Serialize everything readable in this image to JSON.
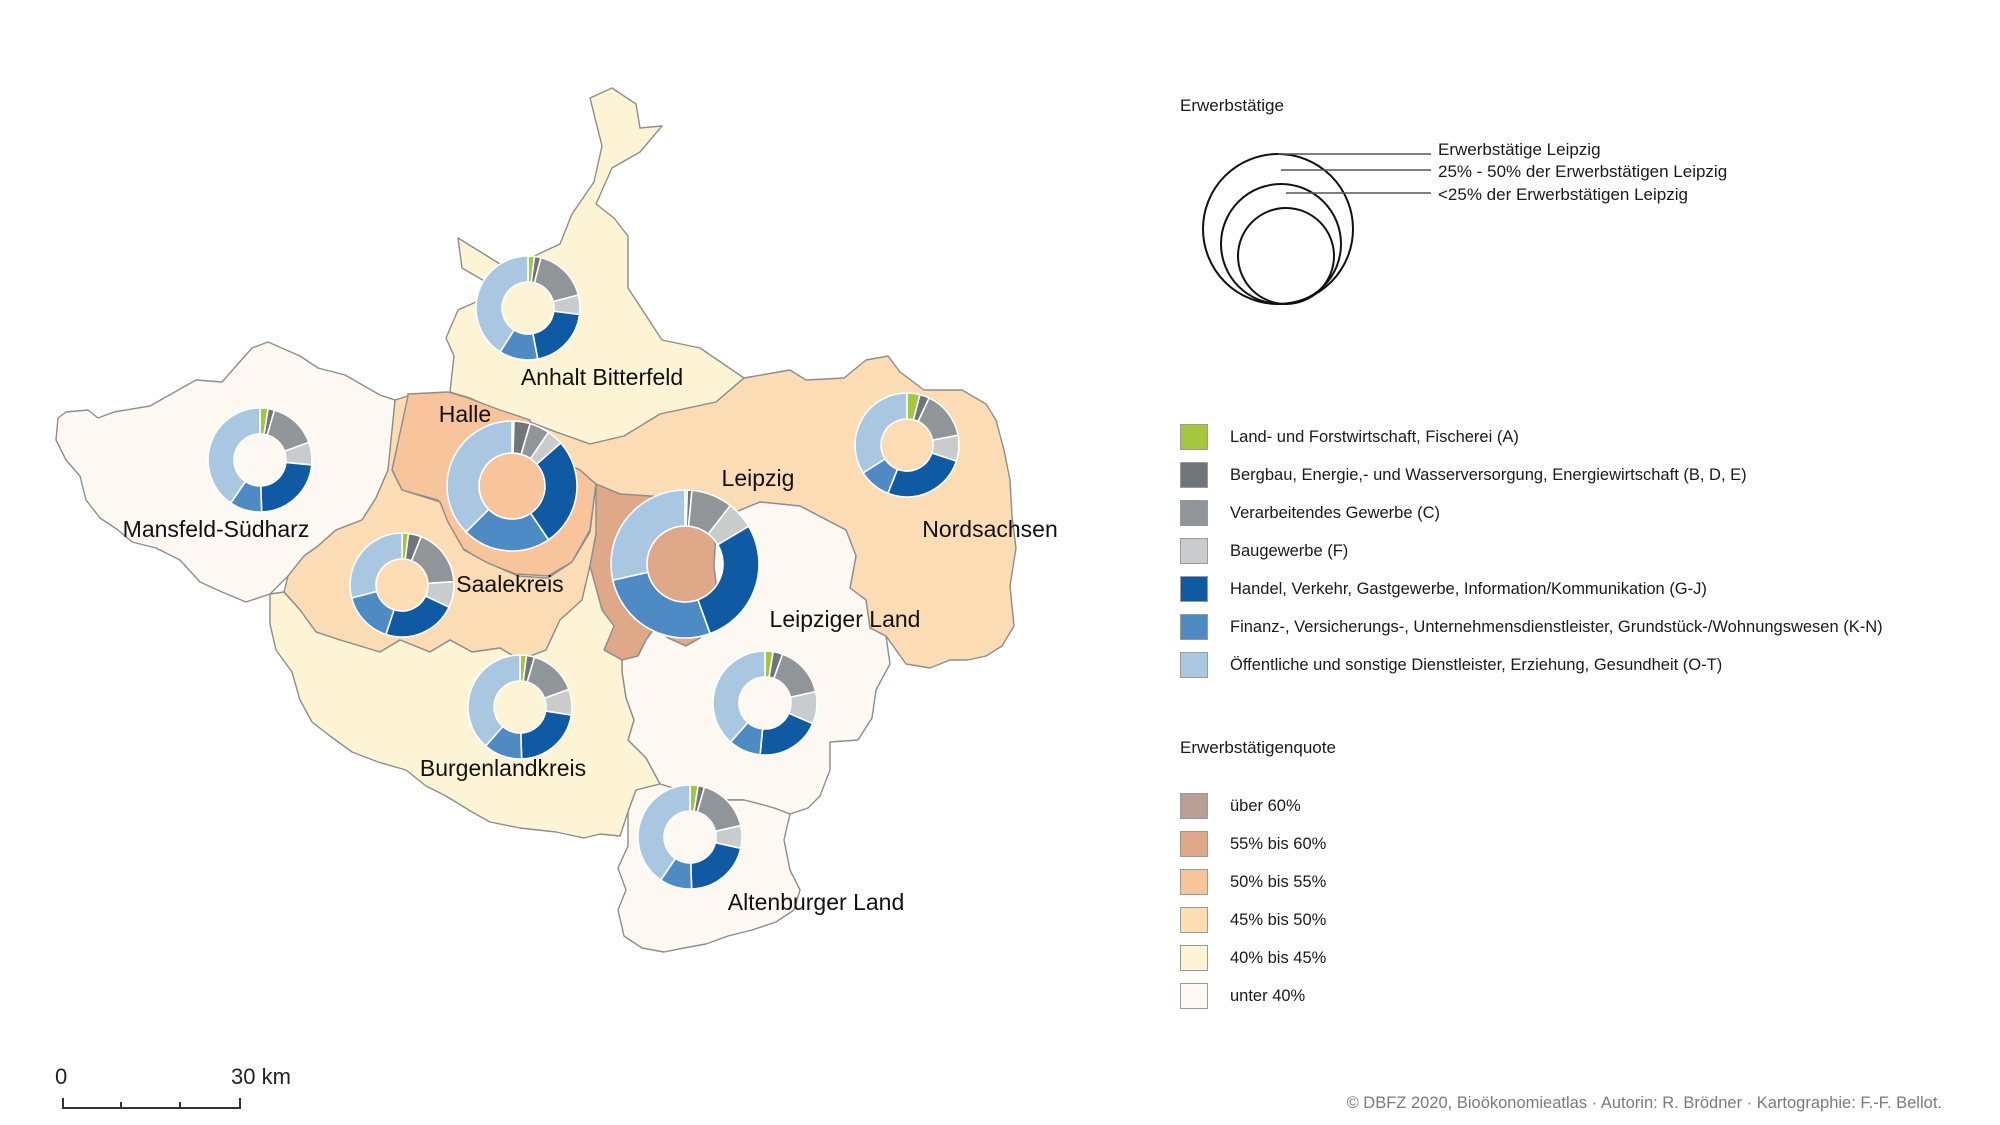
{
  "colors": {
    "sectors": [
      "#a5c63f",
      "#6f7579",
      "#8f9599",
      "#c9cbcc",
      "#0f5aa3",
      "#4e8ac3",
      "#a9c7e0"
    ],
    "quota": [
      "#b89e94",
      "#dea889",
      "#f7c49b",
      "#fbdcb5",
      "#fdf4d6",
      "#fef8f3"
    ],
    "border": "#8d8d8d"
  },
  "legend_size": {
    "title": "Erwerbstätige",
    "items": [
      "Erwerbstätige Leipzig",
      "25% - 50% der Erwerbstätigen Leipzig",
      "<25% der Erwerbstätigen Leipzig"
    ]
  },
  "legend_sectors": {
    "items": [
      "Land- und Forstwirtschaft, Fischerei (A)",
      "Bergbau, Energie,- und Wasserversorgung, Energiewirtschaft (B, D, E)",
      "Verarbeitendes Gewerbe (C)",
      "Baugewerbe (F)",
      "Handel, Verkehr, Gastgewerbe, Information/Kommunikation (G-J)",
      "Finanz-, Versicherungs-, Unternehmensdienstleister, Grundstück-/Wohnungswesen (K-N)",
      "Öffentliche und sonstige Dienstleister, Erziehung, Gesundheit (O-T)"
    ]
  },
  "legend_quota": {
    "title": "Erwerbstätigenquote",
    "items": [
      "über 60%",
      "55% bis 60%",
      "50% bis 55%",
      "45% bis 50%",
      "40% bis 45%",
      "unter 40%"
    ]
  },
  "regions": [
    {
      "name": "Anhalt Bitterfeld",
      "quota_class": 4,
      "size_class": 2,
      "shares": [
        0.02,
        0.02,
        0.17,
        0.06,
        0.2,
        0.12,
        0.41
      ]
    },
    {
      "name": "Halle",
      "quota_class": 2,
      "size_class": 1,
      "shares": [
        0.005,
        0.04,
        0.05,
        0.04,
        0.27,
        0.22,
        0.375
      ]
    },
    {
      "name": "Mansfeld-Südharz",
      "quota_class": 5,
      "size_class": 2,
      "shares": [
        0.025,
        0.02,
        0.15,
        0.07,
        0.23,
        0.1,
        0.405
      ]
    },
    {
      "name": "Saalekreis",
      "quota_class": 3,
      "size_class": 2,
      "shares": [
        0.02,
        0.04,
        0.18,
        0.08,
        0.23,
        0.16,
        0.29
      ]
    },
    {
      "name": "Leipzig",
      "quota_class": 1,
      "size_class": 0,
      "shares": [
        0.005,
        0.01,
        0.09,
        0.06,
        0.28,
        0.27,
        0.285
      ]
    },
    {
      "name": "Nordsachsen",
      "quota_class": 3,
      "size_class": 2,
      "shares": [
        0.04,
        0.03,
        0.15,
        0.08,
        0.26,
        0.1,
        0.34
      ]
    },
    {
      "name": "Leipziger Land",
      "quota_class": 5,
      "size_class": 2,
      "shares": [
        0.025,
        0.03,
        0.16,
        0.1,
        0.2,
        0.1,
        0.385
      ]
    },
    {
      "name": "Burgenlandkreis",
      "quota_class": 4,
      "size_class": 2,
      "shares": [
        0.02,
        0.025,
        0.15,
        0.08,
        0.22,
        0.12,
        0.385
      ]
    },
    {
      "name": "Altenburger Land",
      "quota_class": 5,
      "size_class": 2,
      "shares": [
        0.025,
        0.02,
        0.17,
        0.07,
        0.21,
        0.1,
        0.405
      ]
    }
  ],
  "scalebar": {
    "start": "0",
    "end": "30",
    "unit": "km"
  },
  "copyright": "© DBFZ 2020, Bioökonomieatlas · Autorin: R. Brödner · Kartographie: F.-F. Bellot."
}
